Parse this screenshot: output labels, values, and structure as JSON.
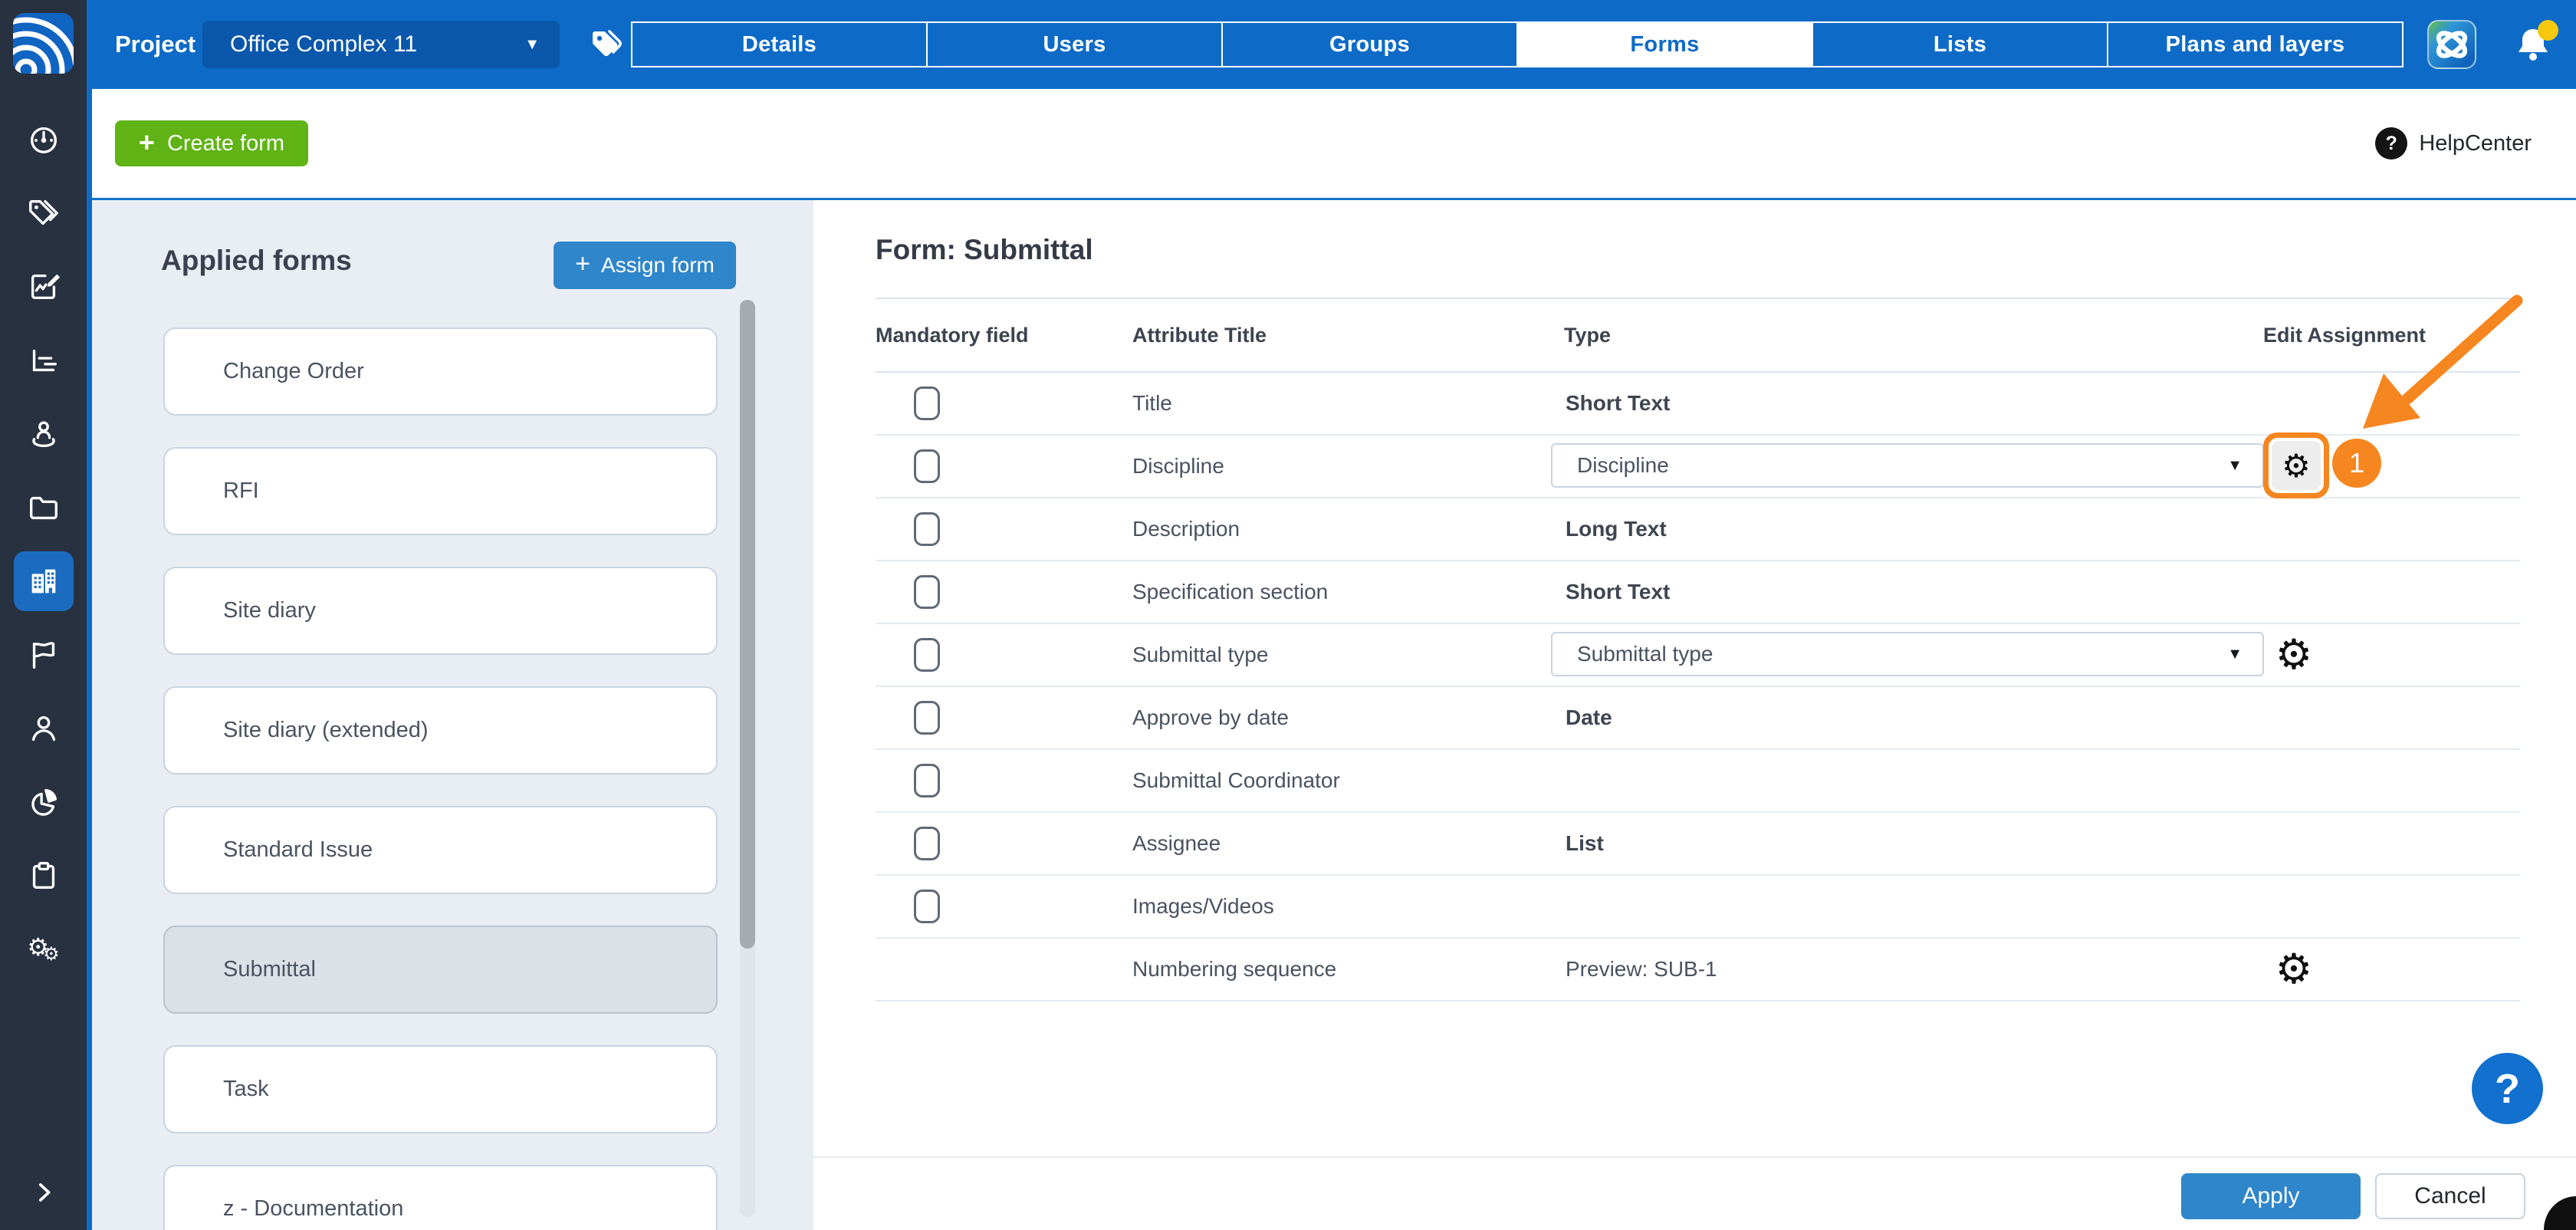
{
  "colors": {
    "topbar_blue": "#0D6BC7",
    "sidebar_dark": "#283140",
    "button_blue": "#2F86CA",
    "create_green": "#5FB314",
    "annotation_orange": "#F6861F",
    "panel_gray": "#E9EEF4",
    "help_blue": "#1270CF"
  },
  "topbar": {
    "project_label": "Project",
    "project_value": "Office Complex 11",
    "tabs": [
      {
        "label": "Details",
        "active": false
      },
      {
        "label": "Users",
        "active": false
      },
      {
        "label": "Groups",
        "active": false
      },
      {
        "label": "Forms",
        "active": true
      },
      {
        "label": "Lists",
        "active": false
      },
      {
        "label": "Plans and layers",
        "active": false
      }
    ]
  },
  "sidebar": {
    "items": [
      {
        "icon": "dashboard",
        "active": false
      },
      {
        "icon": "tags",
        "active": false
      },
      {
        "icon": "forms",
        "active": false
      },
      {
        "icon": "reports",
        "active": false
      },
      {
        "icon": "locations",
        "active": false
      },
      {
        "icon": "files",
        "active": false
      },
      {
        "icon": "project-settings",
        "active": true
      },
      {
        "icon": "flags",
        "active": false
      },
      {
        "icon": "people",
        "active": false
      },
      {
        "icon": "analytics",
        "active": false
      },
      {
        "icon": "tasks",
        "active": false
      },
      {
        "icon": "settings",
        "active": false
      }
    ]
  },
  "toolbar": {
    "create_label": "Create form",
    "help_label": "HelpCenter"
  },
  "forms_panel": {
    "title": "Applied forms",
    "assign_label": "Assign form",
    "forms": [
      {
        "name": "Change Order",
        "selected": false
      },
      {
        "name": "RFI",
        "selected": false
      },
      {
        "name": "Site diary",
        "selected": false
      },
      {
        "name": "Site diary (extended)",
        "selected": false
      },
      {
        "name": "Standard Issue",
        "selected": false
      },
      {
        "name": "Submittal",
        "selected": true
      },
      {
        "name": "Task",
        "selected": false
      },
      {
        "name": "z - Documentation",
        "selected": false
      }
    ]
  },
  "main": {
    "title": "Form: Submittal",
    "columns": [
      "Mandatory field",
      "Attribute Title",
      "Type",
      "Edit Assignment"
    ],
    "rows": [
      {
        "checkbox": true,
        "title": "Title",
        "type": "Short Text",
        "type_bold": true
      },
      {
        "checkbox": true,
        "title": "Discipline",
        "dropdown": "Discipline",
        "gear": "highlighted",
        "badge": "1"
      },
      {
        "checkbox": true,
        "title": "Description",
        "type": "Long Text",
        "type_bold": true
      },
      {
        "checkbox": true,
        "title": "Specification section",
        "type": "Short Text",
        "type_bold": true
      },
      {
        "checkbox": true,
        "title": "Submittal type",
        "dropdown": "Submittal type",
        "gear": "plain"
      },
      {
        "checkbox": true,
        "title": "Approve by date",
        "type": "Date",
        "type_bold": true
      },
      {
        "checkbox": true,
        "title": "Submittal Coordinator",
        "type": "",
        "type_bold": false
      },
      {
        "checkbox": true,
        "title": "Assignee",
        "type": "List",
        "type_bold": true
      },
      {
        "checkbox": true,
        "title": "Images/Videos",
        "type": "",
        "type_bold": false
      },
      {
        "checkbox": false,
        "title": "Numbering sequence",
        "type": "Preview: SUB-1",
        "type_bold": false,
        "gear": "plain"
      }
    ]
  },
  "footer": {
    "apply_label": "Apply",
    "cancel_label": "Cancel"
  }
}
